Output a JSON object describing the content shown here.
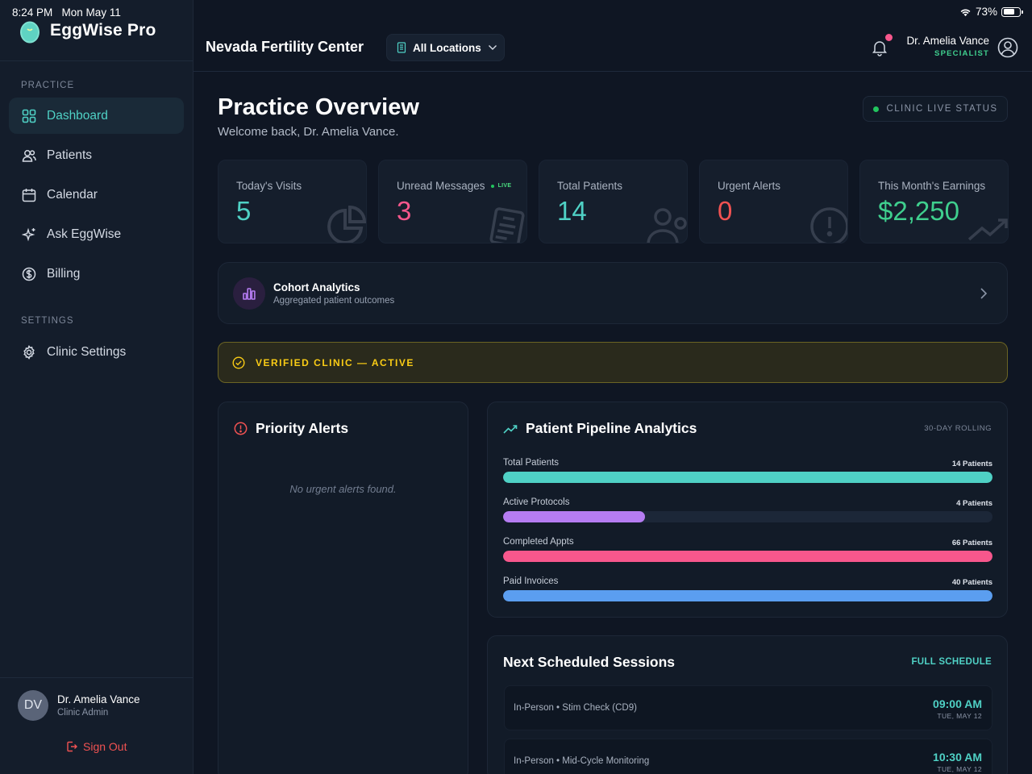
{
  "status_bar": {
    "time": "8:24 PM",
    "date": "Mon May 11",
    "battery": "73%",
    "battery_level": 0.73
  },
  "sidebar": {
    "brand": "EggWise Pro",
    "practice_label": "PRACTICE",
    "items": [
      {
        "label": "Dashboard",
        "icon": "dashboard-icon",
        "active": true
      },
      {
        "label": "Patients",
        "icon": "users-icon"
      },
      {
        "label": "Calendar",
        "icon": "calendar-icon"
      },
      {
        "label": "Ask EggWise",
        "icon": "sparkle-icon"
      },
      {
        "label": "Billing",
        "icon": "dollar-icon"
      }
    ],
    "settings_label": "SETTINGS",
    "settings_items": [
      {
        "label": "Clinic Settings",
        "icon": "gear-icon"
      }
    ],
    "user": {
      "initials": "DV",
      "name": "Dr. Amelia Vance",
      "role": "Clinic Admin"
    },
    "sign_out": "Sign Out"
  },
  "header": {
    "clinic_name": "Nevada Fertility Center",
    "location": "All Locations",
    "doctor_name": "Dr. Amelia Vance",
    "doctor_role": "SPECIALIST"
  },
  "main": {
    "title": "Practice Overview",
    "subtitle": "Welcome back, Dr. Amelia Vance.",
    "live_status": "CLINIC LIVE STATUS",
    "stats": [
      {
        "label": "Today's Visits",
        "value": "5",
        "color": "#4fd1c5",
        "icon": "pie-chart-icon"
      },
      {
        "label": "Unread Messages",
        "value": "3",
        "color": "#f7578c",
        "icon": "clipboard-icon",
        "badge": "LIVE"
      },
      {
        "label": "Total Patients",
        "value": "14",
        "color": "#4fd1c5",
        "icon": "users-icon"
      },
      {
        "label": "Urgent Alerts",
        "value": "0",
        "color": "#f05252",
        "icon": "alert-icon"
      },
      {
        "label": "This Month's Earnings",
        "value": "$2,250",
        "color": "#3fcf8e",
        "icon": "trend-icon"
      }
    ],
    "cohort": {
      "title": "Cohort Analytics",
      "subtitle": "Aggregated patient outcomes"
    },
    "verified": "VERIFIED CLINIC — ACTIVE",
    "alerts": {
      "title": "Priority Alerts",
      "empty": "No urgent alerts found."
    },
    "pipeline": {
      "title": "Patient Pipeline Analytics",
      "tag": "30-DAY ROLLING",
      "metrics": [
        {
          "label": "Total Patients",
          "value": "14 Patients",
          "fill": 1.0,
          "color": "#4fd1c5"
        },
        {
          "label": "Active Protocols",
          "value": "4 Patients",
          "fill": 0.29,
          "color": "#b57cf2"
        },
        {
          "label": "Completed Appts",
          "value": "66 Patients",
          "fill": 1.0,
          "color": "#f7578c"
        },
        {
          "label": "Paid Invoices",
          "value": "40 Patients",
          "fill": 1.0,
          "color": "#5b9ef0"
        }
      ]
    },
    "sessions": {
      "title": "Next Scheduled Sessions",
      "link": "FULL SCHEDULE",
      "items": [
        {
          "desc": "In-Person • Stim Check (CD9)",
          "time": "09:00 AM",
          "date": "TUE, MAY 12"
        },
        {
          "desc": "In-Person • Mid-Cycle Monitoring",
          "time": "10:30 AM",
          "date": "TUE, MAY 12"
        }
      ]
    }
  }
}
